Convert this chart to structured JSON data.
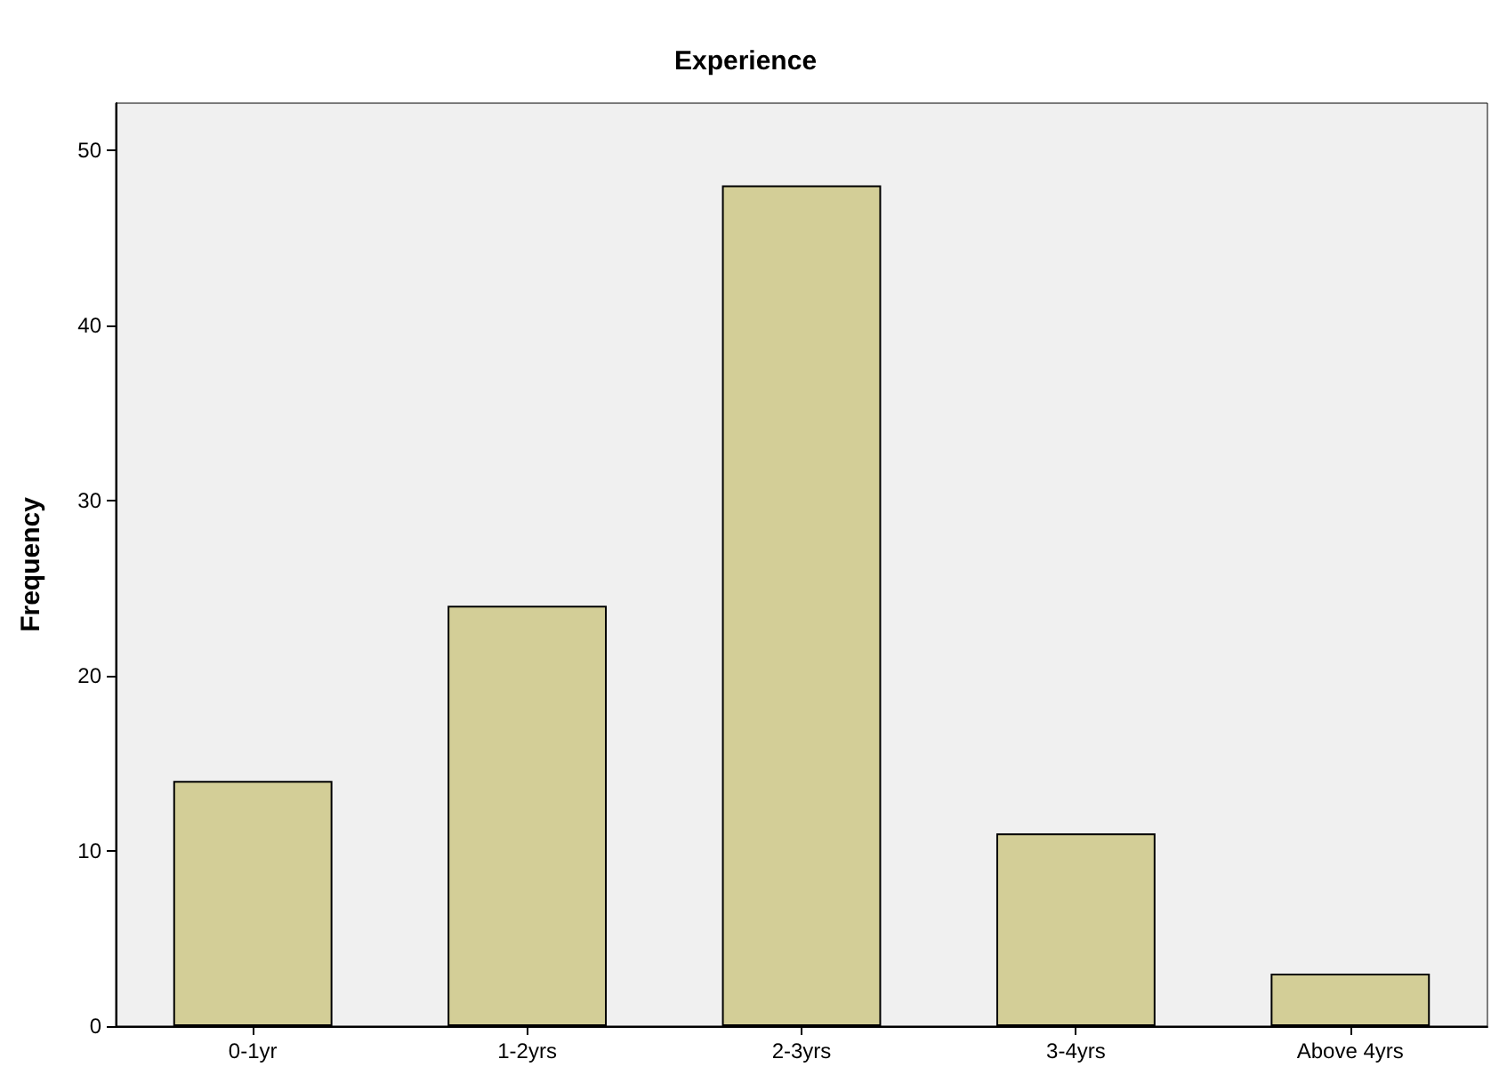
{
  "chart_data": {
    "type": "bar",
    "title": "Experience",
    "ylabel": "Frequency",
    "categories": [
      "0-1yr",
      "1-2yrs",
      "2-3yrs",
      "3-4yrs",
      "Above 4yrs"
    ],
    "values": [
      14,
      24,
      48,
      11,
      3
    ],
    "color": "#d3ce97",
    "ylim": [
      0,
      52.7
    ],
    "yticks": [
      0,
      10,
      20,
      30,
      40,
      50
    ],
    "grid": false
  }
}
